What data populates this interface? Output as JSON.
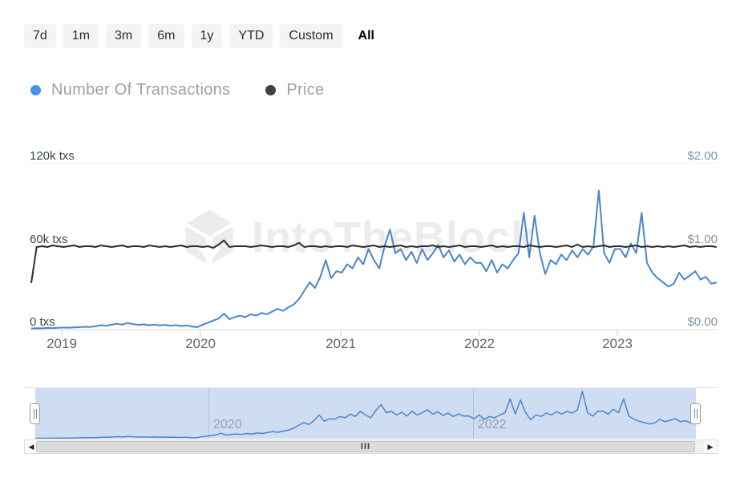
{
  "toolbar": {
    "ranges": [
      "7d",
      "1m",
      "3m",
      "6m",
      "1y",
      "YTD",
      "Custom",
      "All"
    ],
    "selected": "All"
  },
  "legend": [
    {
      "label": "Number Of Transactions",
      "color": "#4a90e2"
    },
    {
      "label": "Price",
      "color": "#3c4248"
    }
  ],
  "watermark": {
    "text": "IntoTheBlock"
  },
  "axes": {
    "left_ticks": [
      "120k txs",
      "60k txs",
      "0 txs"
    ],
    "right_ticks": [
      "$2.00",
      "$1.00",
      "$0.00"
    ],
    "x_ticks": [
      "2019",
      "2020",
      "2021",
      "2022",
      "2023"
    ]
  },
  "navigator": {
    "x_labels": [
      "2020",
      "2022"
    ],
    "scrollbar_grip": "III",
    "left_arrow": "◀",
    "right_arrow": "▶"
  },
  "chart_data": {
    "type": "line",
    "title": "",
    "x_start": 2018.78,
    "x_step": 0.0386,
    "x_ticks": [
      2019,
      2020,
      2021,
      2022,
      2023
    ],
    "left_axis": {
      "label": "transactions",
      "unit": "k txs",
      "ylim": [
        0,
        120
      ],
      "ticks": [
        0,
        60,
        120
      ]
    },
    "right_axis": {
      "label": "price",
      "unit": "USD",
      "ylim": [
        0,
        2
      ],
      "ticks": [
        0,
        1,
        2
      ]
    },
    "grid": "horizontal",
    "legend_position": "top-left",
    "series": [
      {
        "name": "Number Of Transactions",
        "axis": "left",
        "unit": "k txs",
        "color": "#4a86c8",
        "values": [
          0.8,
          1.0,
          0.9,
          1.2,
          1.1,
          1.3,
          1.5,
          1.4,
          1.6,
          1.8,
          2.0,
          1.9,
          2.4,
          3.2,
          2.8,
          3.5,
          4.2,
          3.6,
          4.8,
          4.0,
          3.4,
          3.8,
          3.2,
          3.6,
          3.0,
          3.4,
          2.8,
          3.2,
          2.6,
          3.0,
          2.2,
          1.8,
          3.5,
          5.0,
          6.5,
          8.0,
          11.5,
          7.5,
          9.0,
          10.0,
          9.0,
          11.0,
          10.0,
          12.0,
          11.0,
          13.0,
          15.0,
          13.5,
          16.0,
          18.0,
          22,
          28,
          34,
          30,
          38,
          50,
          37,
          42,
          41,
          47,
          44,
          52,
          47,
          58,
          50,
          44,
          60,
          72,
          55,
          58,
          50,
          56,
          48,
          58,
          50,
          55,
          61,
          52,
          57,
          49,
          54,
          47,
          52,
          48,
          48,
          42,
          50,
          41,
          47,
          44,
          50,
          55,
          84,
          52,
          82,
          55,
          40,
          50,
          47,
          54,
          50,
          57,
          52,
          58,
          54,
          60,
          100,
          55,
          48,
          58,
          58,
          52,
          62,
          55,
          84,
          48,
          41,
          37,
          34,
          31,
          33,
          41,
          36,
          39,
          42,
          36,
          38,
          33,
          34
        ]
      },
      {
        "name": "Price",
        "axis": "right",
        "unit": "USD",
        "color": "#2d2d2d",
        "values": [
          0.56,
          0.99,
          1.0,
          0.99,
          1.01,
          1.0,
          0.99,
          1.0,
          1.01,
          0.99,
          1.0,
          1.0,
          0.99,
          1.01,
          1.0,
          0.99,
          1.0,
          1.01,
          0.99,
          1.0,
          1.0,
          0.99,
          1.01,
          1.0,
          0.99,
          1.0,
          0.99,
          1.0,
          1.01,
          0.99,
          1.0,
          1.0,
          0.99,
          1.0,
          0.98,
          1.02,
          1.07,
          0.99,
          1.0,
          1.0,
          1.0,
          0.99,
          1.0,
          1.01,
          1.0,
          0.99,
          1.0,
          1.0,
          0.99,
          1.01,
          1.04,
          0.99,
          1.0,
          1.0,
          0.99,
          1.0,
          0.99,
          1.0,
          1.0,
          0.99,
          1.01,
          1.0,
          0.99,
          1.0,
          1.01,
          0.99,
          1.0,
          0.99,
          1.0,
          1.01,
          0.99,
          1.0,
          0.99,
          1.0,
          1.0,
          1.01,
          0.99,
          1.0,
          0.99,
          1.0,
          1.01,
          0.99,
          1.0,
          1.0,
          0.99,
          1.0,
          1.01,
          0.99,
          1.0,
          0.99,
          1.0,
          1.0,
          0.99,
          1.01,
          1.0,
          0.99,
          1.0,
          1.0,
          0.99,
          1.0,
          1.01,
          0.99,
          1.02,
          0.99,
          1.0,
          0.99,
          1.0,
          1.01,
          0.99,
          1.0,
          1.0,
          0.99,
          1.0,
          1.01,
          0.99,
          1.0,
          0.99,
          1.0,
          0.99,
          1.0,
          0.99,
          1.0,
          1.01,
          0.99,
          1.0,
          0.99,
          1.0,
          1.0,
          0.99
        ]
      }
    ],
    "navigator_series": "Number Of Transactions"
  }
}
